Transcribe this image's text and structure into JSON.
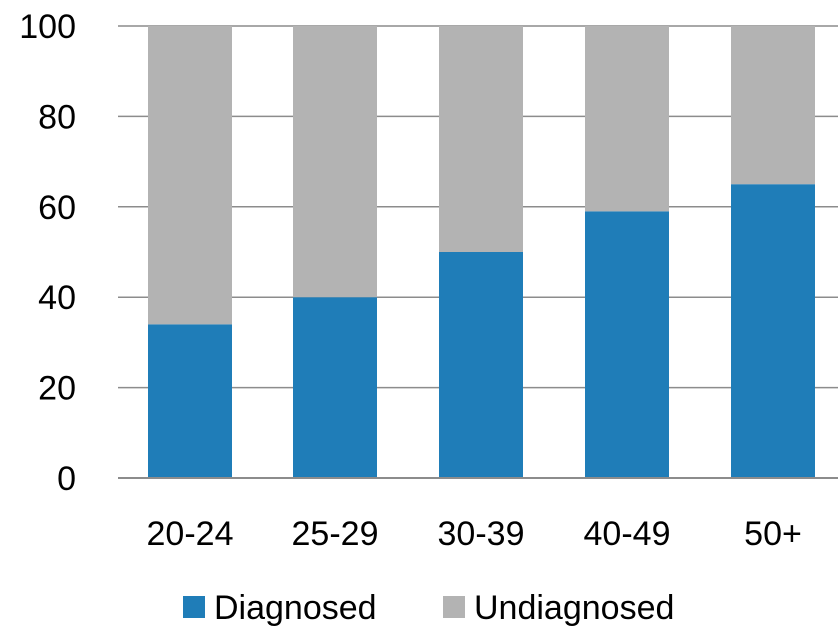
{
  "chart_data": {
    "type": "bar",
    "stacked": true,
    "categories": [
      "20-24",
      "25-29",
      "30-39",
      "40-49",
      "50+"
    ],
    "series": [
      {
        "name": "Diagnosed",
        "color": "#1f7db8",
        "values": [
          34,
          40,
          50,
          59,
          65
        ]
      },
      {
        "name": "Undiagnosed",
        "color": "#b3b3b3",
        "values": [
          66,
          60,
          50,
          41,
          35
        ]
      }
    ],
    "y_ticks": [
      "0",
      "20",
      "40",
      "60",
      "80",
      "100"
    ],
    "ylim": [
      0,
      100
    ],
    "grid": true,
    "legend_position": "bottom"
  }
}
